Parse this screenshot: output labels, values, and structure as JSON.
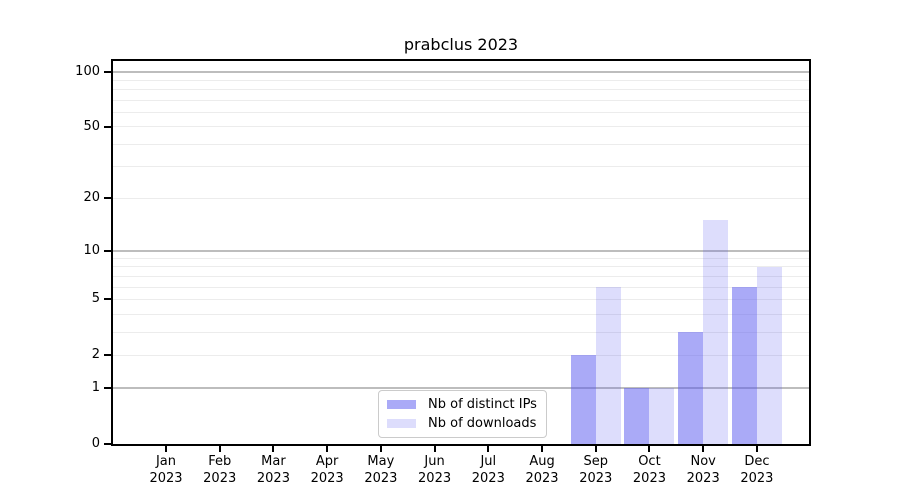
{
  "chart_data": {
    "type": "bar",
    "title": "prabclus 2023",
    "categories": [
      "Jan",
      "Feb",
      "Mar",
      "Apr",
      "May",
      "Jun",
      "Jul",
      "Aug",
      "Sep",
      "Oct",
      "Nov",
      "Dec"
    ],
    "year_label": "2023",
    "series": [
      {
        "name": "Nb of distinct IPs",
        "color": "#5555F080",
        "values": [
          0,
          0,
          0,
          0,
          0,
          0,
          0,
          0,
          2,
          1,
          3,
          6
        ]
      },
      {
        "name": "Nb of downloads",
        "color": "#5555F033",
        "values": [
          0,
          0,
          0,
          0,
          0,
          0,
          0,
          0,
          6,
          1,
          15,
          8
        ]
      }
    ],
    "xlabel": "",
    "ylabel": "",
    "yticks": [
      0,
      1,
      2,
      5,
      10,
      20,
      50,
      100
    ],
    "y_scale": "log10(value+1)",
    "ylim": [
      0,
      110
    ],
    "grid": {
      "minor_lines": [
        2,
        3,
        4,
        5,
        6,
        7,
        8,
        9,
        20,
        30,
        40,
        50,
        60,
        70,
        80,
        90
      ],
      "major_lines": [
        1,
        10,
        100
      ],
      "minor_color": "#ececec",
      "major_color": "#bdbdbd"
    },
    "legend": {
      "position": "lower center",
      "border_color": "#cbcbcb",
      "background": "#ffffff"
    },
    "axis_color": "#000000",
    "text_color": "#000000",
    "background_color": "#ffffff"
  }
}
